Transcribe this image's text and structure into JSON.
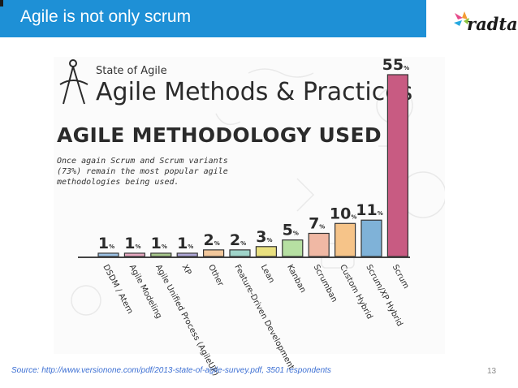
{
  "slide": {
    "title": "Agile is not only scrum",
    "logo_text": "radtac",
    "source": "Source: http://www.versionone.com/pdf/2013-state-of-agile-survey.pdf, 3501 respondents",
    "page_number": "13",
    "banner_color": "#1e90d6"
  },
  "survey": {
    "kicker": "State of Agile",
    "heading": "Agile Methods & Practices",
    "subheading": "AGILE METHODOLOGY USED",
    "note": "Once again Scrum and Scrum variants (73%) remain the most popular agile methodologies being used."
  },
  "chart_data": {
    "type": "bar",
    "title": "AGILE METHODOLOGY USED",
    "categories": [
      "DSDM / Atern",
      "Agile Modeling",
      "Agile Unified Process (AgileUP)",
      "XP",
      "Other",
      "Feature-Driven Development",
      "Lean",
      "Kanban",
      "Scrumban",
      "Custom Hybrid",
      "Scrum/XP Hybrid",
      "Scrum"
    ],
    "values": [
      1,
      1,
      1,
      1,
      2,
      2,
      3,
      5,
      7,
      10,
      11,
      55
    ],
    "unit": "%",
    "value_labels": [
      "1%",
      "1%",
      "1%",
      "1%",
      "2%",
      "2%",
      "3%",
      "5%",
      "7%",
      "10%",
      "11%",
      "55%"
    ],
    "colors": [
      "#9dc3e6",
      "#e7a9c1",
      "#a8c98c",
      "#b0a8d8",
      "#f2c79b",
      "#9fd4c9",
      "#e9e07f",
      "#b6e0a2",
      "#f0b8a4",
      "#f6c489",
      "#7fb2d8",
      "#c85b82"
    ],
    "legend": "none",
    "grid": false
  }
}
